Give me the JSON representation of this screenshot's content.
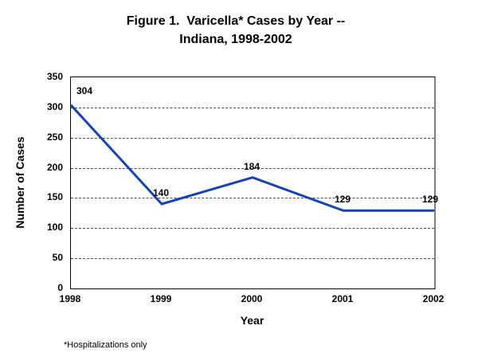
{
  "title": {
    "line1": "Figure 1.  Varicella* Cases by Year --",
    "line2": "Indiana, 1998-2002"
  },
  "chart_data": {
    "type": "line",
    "title": "Figure 1. Varicella* Cases by Year -- Indiana, 1998-2002",
    "x": [
      1998,
      1999,
      2000,
      2001,
      2002
    ],
    "values": [
      304,
      140,
      184,
      129,
      129
    ],
    "xlabel": "Year",
    "ylabel": "Number of Cases",
    "ylim": [
      0,
      350
    ],
    "yticks": [
      0,
      50,
      100,
      150,
      200,
      250,
      300,
      350
    ],
    "grid": "horizontal-dashed",
    "legend": "none",
    "line_color": "#1243bc",
    "grid_color": "#4d4d4d",
    "frame_color": "#000000",
    "frame_shadow_color": "#7f7f7f"
  },
  "footnote": "*Hospitalizations only"
}
